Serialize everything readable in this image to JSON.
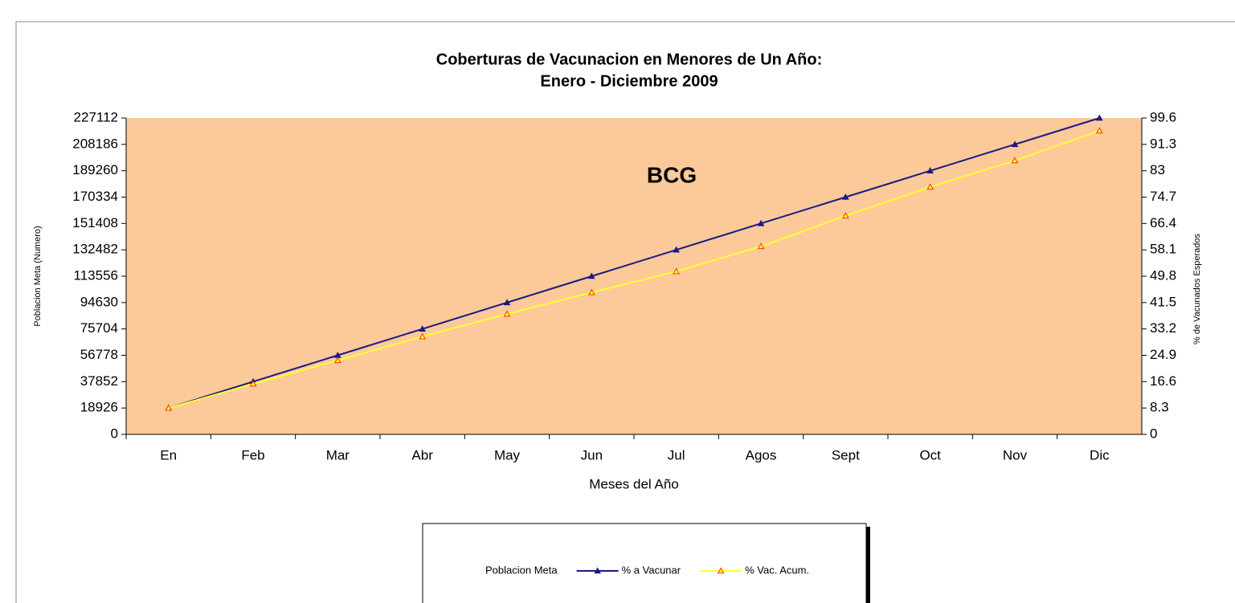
{
  "chart_data": {
    "type": "line",
    "title": "Coberturas de Vacunacion en Menores de Un Año:",
    "subtitle": "Enero - Diciembre 2009",
    "annotation": "BCG",
    "xlabel": "Meses del Año",
    "ylabel": "Poblacion Meta (Numero)",
    "y2label": "% de Vacunados Esperados",
    "categories": [
      "En",
      "Feb",
      "Mar",
      "Abr",
      "May",
      "Jun",
      "Jul",
      "Agos",
      "Sept",
      "Oct",
      "Nov",
      "Dic"
    ],
    "ylim": [
      0,
      227112
    ],
    "yticks": [
      0,
      18926,
      37852,
      56778,
      75704,
      94630,
      113556,
      132482,
      151408,
      170334,
      189260,
      208186,
      227112
    ],
    "y2lim": [
      0,
      99.6
    ],
    "y2ticks": [
      0,
      8.3,
      16.6,
      24.9,
      33.2,
      41.5,
      49.8,
      58.1,
      66.4,
      74.7,
      83,
      91.3,
      99.6
    ],
    "plot_background": "#fcc99b",
    "series": [
      {
        "name": "Poblacion Meta",
        "values": [
          null,
          null,
          null,
          null,
          null,
          null,
          null,
          null,
          null,
          null,
          null,
          null
        ]
      },
      {
        "name": "% a Vacunar",
        "color": "#1a1a80",
        "marker_color": "#1a1a80",
        "axis": "y2",
        "values": [
          8.3,
          16.6,
          24.9,
          33.2,
          41.5,
          49.8,
          58.1,
          66.4,
          74.7,
          83,
          91.3,
          99.6
        ]
      },
      {
        "name": "% Vac. Acum.",
        "color": "#ffff33",
        "marker_color": "#ff3300",
        "axis": "y2",
        "values": [
          8.3,
          15.9,
          23.3,
          30.8,
          37.9,
          44.7,
          51.3,
          59.2,
          68.8,
          77.9,
          86.2,
          95.6
        ]
      }
    ]
  }
}
